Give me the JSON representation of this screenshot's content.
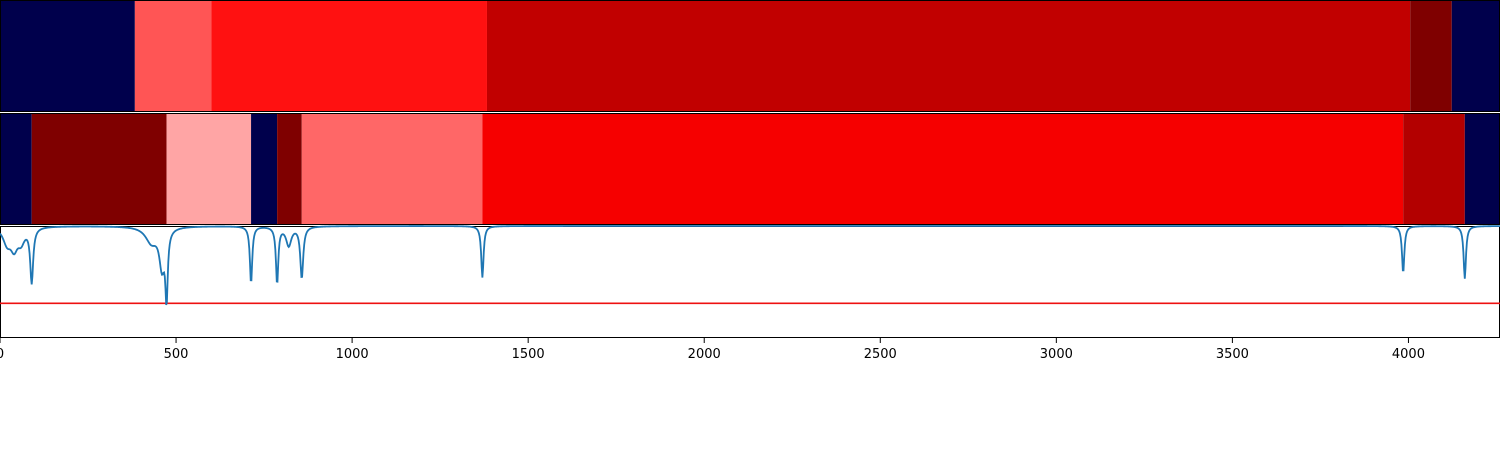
{
  "chart_data": {
    "type": "heatmap",
    "x_range": [
      0,
      4260
    ],
    "x_ticks": [
      0,
      500,
      1000,
      1500,
      2000,
      2500,
      3000,
      3500,
      4000
    ],
    "x_tick_labels": [
      "0",
      "500",
      "1000",
      "1500",
      "2000",
      "2500",
      "3000",
      "3500",
      "4000"
    ],
    "segment_tracks": [
      {
        "segments": [
          {
            "start": 0,
            "end": 383,
            "color": "#00004c"
          },
          {
            "start": 383,
            "end": 600,
            "color": "#ff5555"
          },
          {
            "start": 600,
            "end": 1383,
            "color": "#ff1111"
          },
          {
            "start": 1383,
            "end": 4005,
            "color": "#c10000"
          },
          {
            "start": 4005,
            "end": 4123,
            "color": "#7f0000"
          },
          {
            "start": 4123,
            "end": 4260,
            "color": "#00004c"
          }
        ]
      },
      {
        "segments": [
          {
            "start": 0,
            "end": 90,
            "color": "#00004c"
          },
          {
            "start": 90,
            "end": 473,
            "color": "#7f0000"
          },
          {
            "start": 473,
            "end": 713,
            "color": "#ffa5a5"
          },
          {
            "start": 713,
            "end": 787,
            "color": "#00004c"
          },
          {
            "start": 787,
            "end": 857,
            "color": "#7f0000"
          },
          {
            "start": 857,
            "end": 1370,
            "color": "#ff6767"
          },
          {
            "start": 1370,
            "end": 3985,
            "color": "#f60000"
          },
          {
            "start": 3985,
            "end": 4160,
            "color": "#b30000"
          },
          {
            "start": 4160,
            "end": 4260,
            "color": "#00004c"
          }
        ]
      }
    ],
    "line_panel": {
      "y_range": [
        -1.0,
        0.0
      ],
      "threshold": -0.69,
      "threshold_color": "#ee1111",
      "line_color": "#1f77b4",
      "baseline": 0.0,
      "dips": [
        {
          "x": 20,
          "depth": -0.14,
          "width": 14
        },
        {
          "x": 40,
          "depth": -0.17,
          "width": 12
        },
        {
          "x": 60,
          "depth": -0.12,
          "width": 12
        },
        {
          "x": 90,
          "depth": -0.49,
          "width": 5
        },
        {
          "x": 430,
          "depth": -0.14,
          "width": 20
        },
        {
          "x": 460,
          "depth": -0.34,
          "width": 9
        },
        {
          "x": 473,
          "depth": -0.59,
          "width": 4
        },
        {
          "x": 713,
          "depth": -0.51,
          "width": 4
        },
        {
          "x": 787,
          "depth": -0.51,
          "width": 4
        },
        {
          "x": 820,
          "depth": -0.17,
          "width": 9
        },
        {
          "x": 857,
          "depth": -0.46,
          "width": 5
        },
        {
          "x": 1370,
          "depth": -0.46,
          "width": 4
        },
        {
          "x": 3985,
          "depth": -0.42,
          "width": 4
        },
        {
          "x": 4160,
          "depth": -0.47,
          "width": 4
        }
      ]
    }
  }
}
